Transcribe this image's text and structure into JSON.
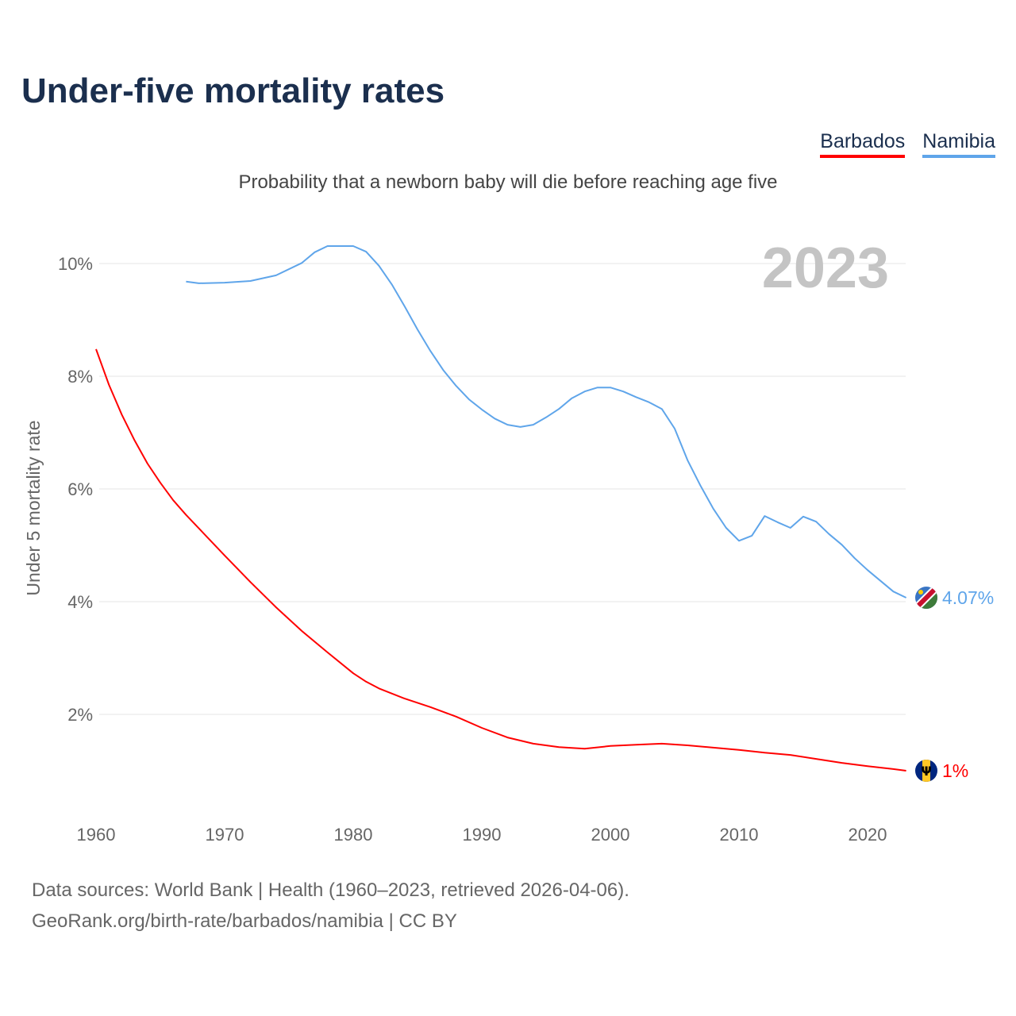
{
  "chart_data": {
    "type": "line",
    "title": "Under-five mortality rates",
    "subtitle": "Probability that a newborn baby will die before reaching age five",
    "xlabel": "",
    "ylabel": "Under 5 mortality rate",
    "xlim": [
      1960,
      2023
    ],
    "ylim": [
      0,
      10.5
    ],
    "x_ticks": [
      "1960",
      "1970",
      "1980",
      "1990",
      "2000",
      "2010",
      "2020"
    ],
    "y_ticks": [
      {
        "v": 2,
        "label": "2%"
      },
      {
        "v": 4,
        "label": "4%"
      },
      {
        "v": 6,
        "label": "6%"
      },
      {
        "v": 8,
        "label": "8%"
      },
      {
        "v": 10,
        "label": "10%"
      }
    ],
    "grid": true,
    "legend_position": "top-right",
    "year_watermark": "2023",
    "series": [
      {
        "name": "Barbados",
        "color": "#ff0000",
        "end_label": "1%",
        "flag": "barbados-flag",
        "x": [
          1960,
          1961,
          1962,
          1963,
          1964,
          1965,
          1966,
          1967,
          1968,
          1970,
          1972,
          1974,
          1976,
          1978,
          1980,
          1981,
          1982,
          1984,
          1986,
          1988,
          1990,
          1992,
          1994,
          1996,
          1998,
          2000,
          2002,
          2004,
          2006,
          2008,
          2010,
          2012,
          2014,
          2016,
          2018,
          2020,
          2022,
          2023
        ],
        "y": [
          8.48,
          7.85,
          7.32,
          6.86,
          6.45,
          6.11,
          5.8,
          5.54,
          5.3,
          4.82,
          4.35,
          3.9,
          3.48,
          3.1,
          2.73,
          2.58,
          2.46,
          2.28,
          2.13,
          1.96,
          1.76,
          1.59,
          1.48,
          1.42,
          1.39,
          1.44,
          1.46,
          1.48,
          1.45,
          1.41,
          1.37,
          1.32,
          1.28,
          1.21,
          1.14,
          1.08,
          1.03,
          1.0
        ]
      },
      {
        "name": "Namibia",
        "color": "#5fa5ea",
        "end_label": "4.07%",
        "flag": "namibia-flag",
        "x": [
          1967,
          1968,
          1970,
          1972,
          1974,
          1976,
          1977,
          1978,
          1980,
          1981,
          1982,
          1983,
          1984,
          1985,
          1986,
          1987,
          1988,
          1989,
          1990,
          1991,
          1992,
          1993,
          1994,
          1995,
          1996,
          1997,
          1998,
          1999,
          2000,
          2001,
          2002,
          2003,
          2004,
          2005,
          2006,
          2007,
          2008,
          2009,
          2010,
          2011,
          2012,
          2013,
          2014,
          2015,
          2016,
          2017,
          2018,
          2019,
          2020,
          2021,
          2022,
          2023
        ],
        "y": [
          9.68,
          9.65,
          9.66,
          9.69,
          9.79,
          10.01,
          10.2,
          10.31,
          10.31,
          10.21,
          9.96,
          9.63,
          9.24,
          8.83,
          8.45,
          8.11,
          7.83,
          7.59,
          7.41,
          7.25,
          7.14,
          7.1,
          7.14,
          7.27,
          7.42,
          7.61,
          7.73,
          7.8,
          7.8,
          7.73,
          7.63,
          7.54,
          7.42,
          7.07,
          6.51,
          6.06,
          5.65,
          5.31,
          5.08,
          5.17,
          5.52,
          5.41,
          5.31,
          5.51,
          5.42,
          5.2,
          5.01,
          4.77,
          4.56,
          4.37,
          4.18,
          4.07
        ]
      }
    ]
  },
  "footer": {
    "sources": "Data sources: World Bank | Health (1960–2023, retrieved 2026-04-06).",
    "link": "GeoRank.org/birth-rate/barbados/namibia | CC BY"
  }
}
